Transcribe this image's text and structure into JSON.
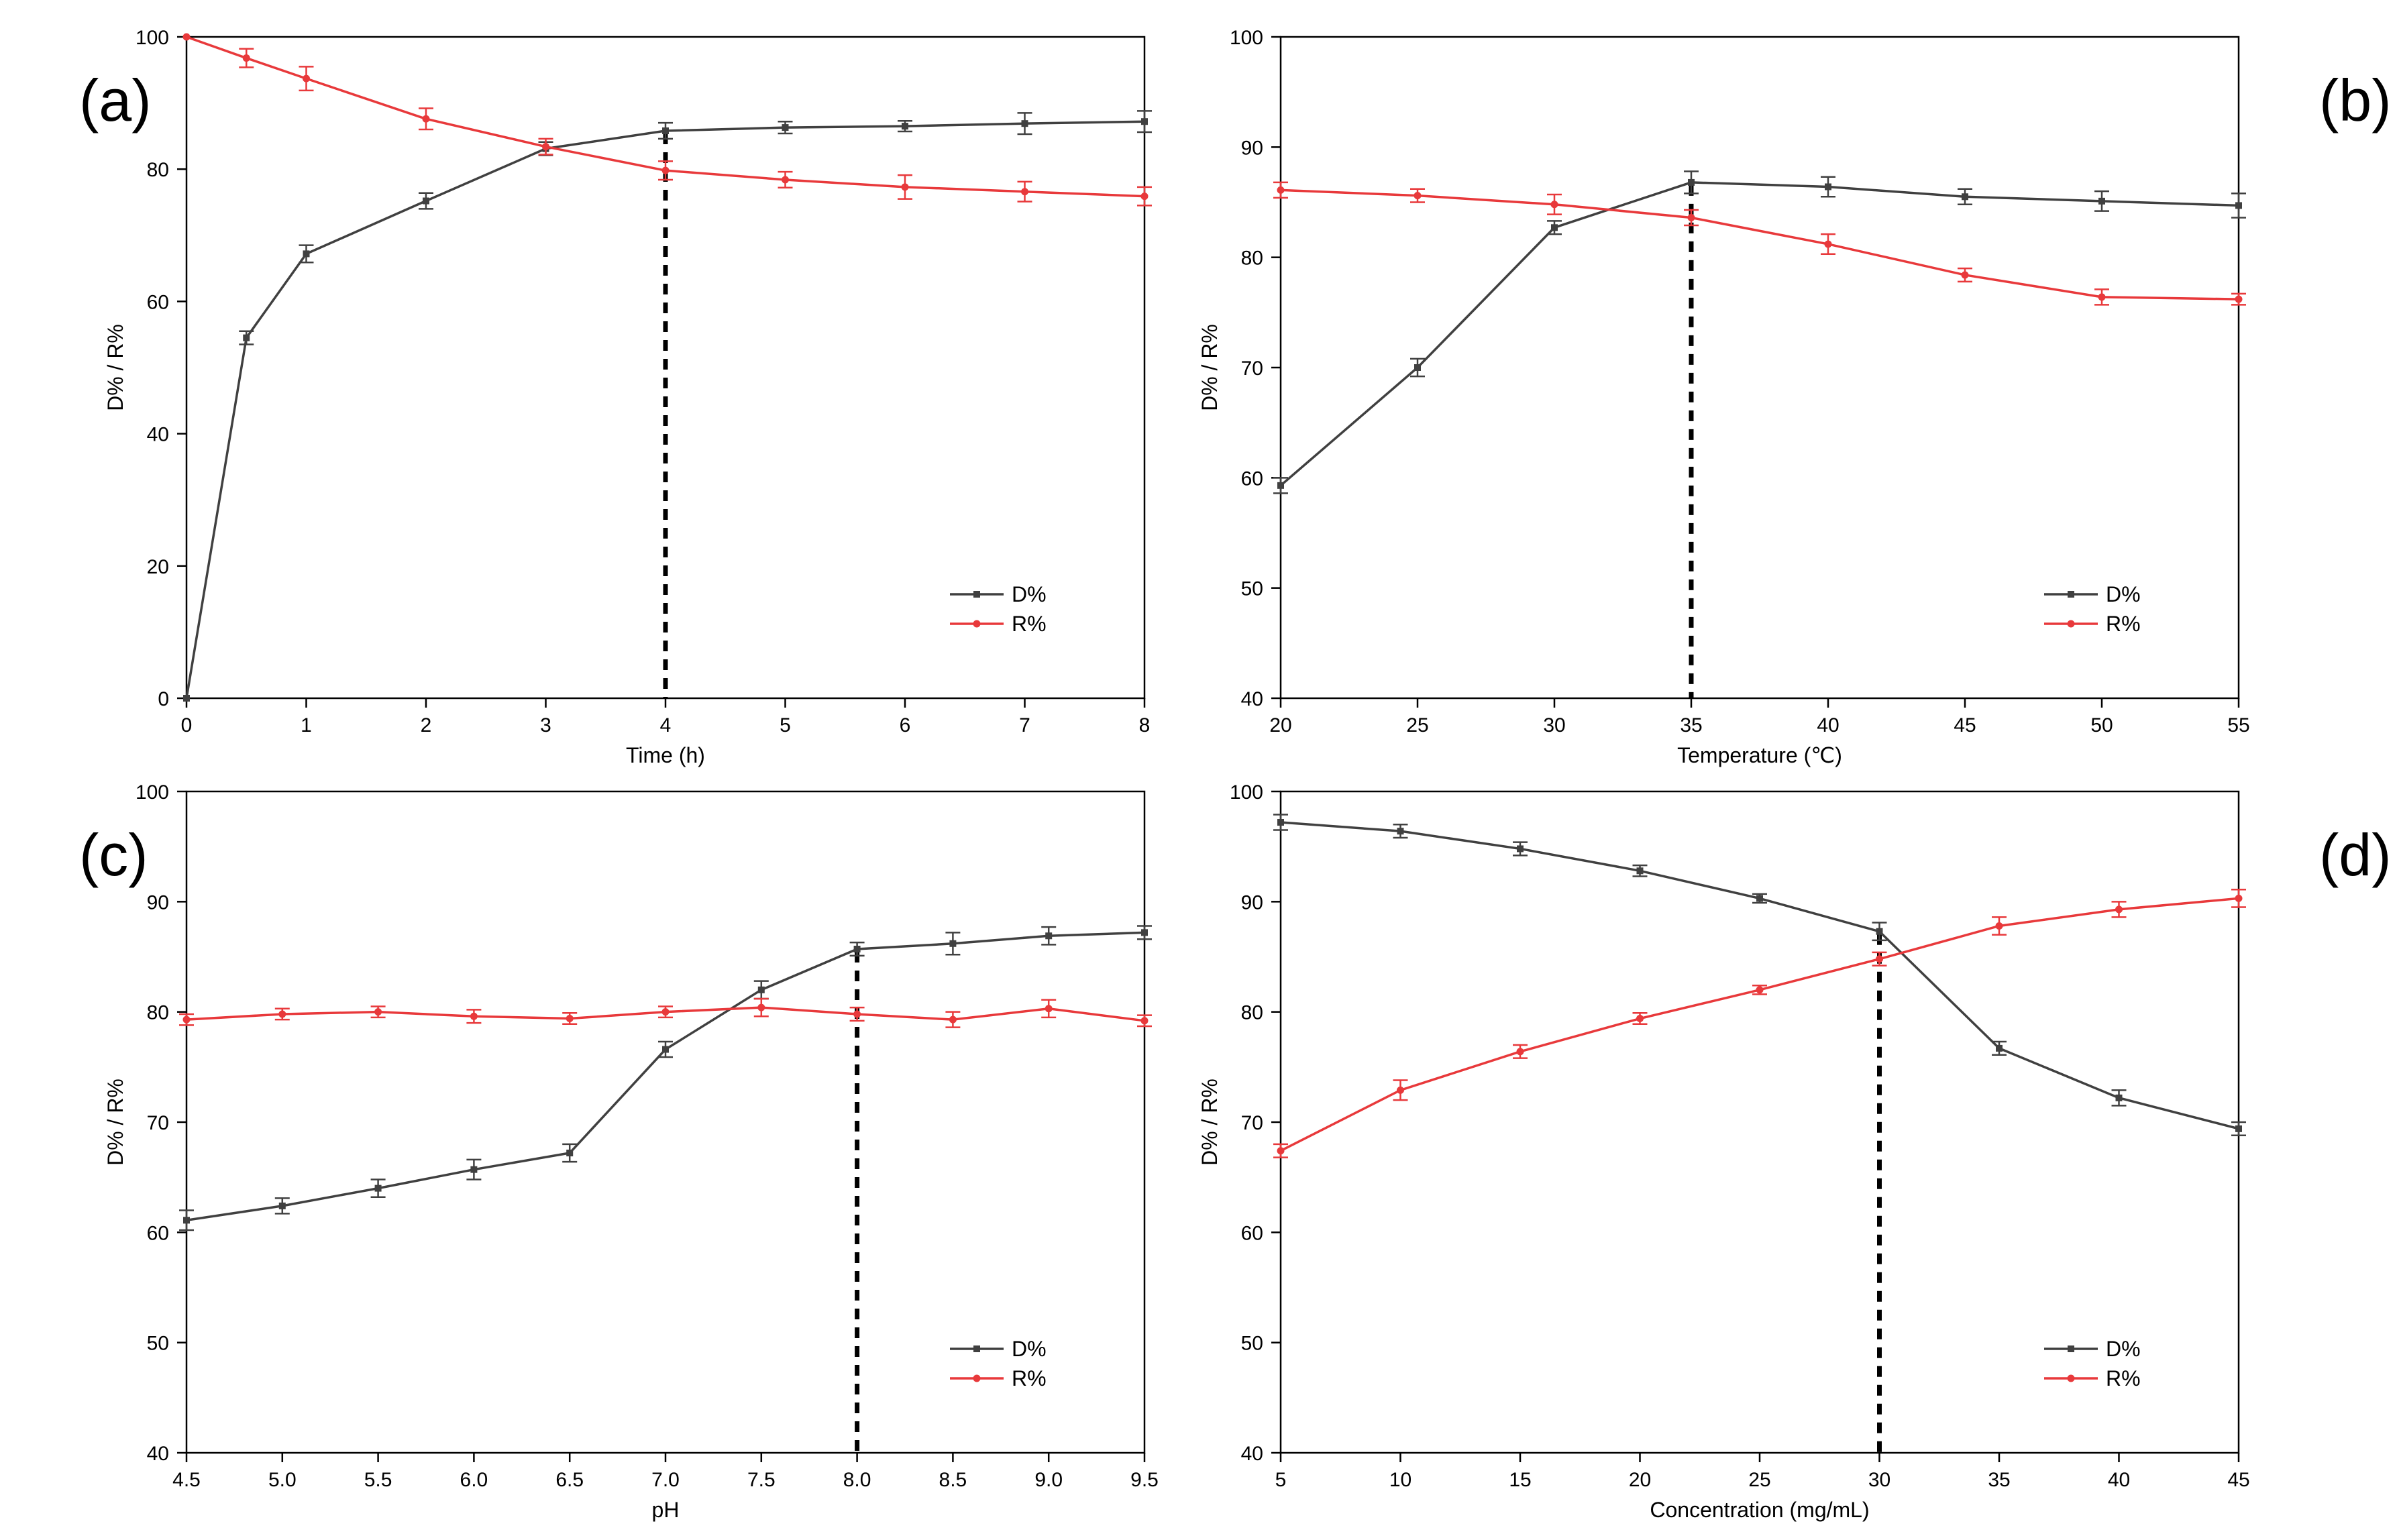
{
  "chart_data": [
    {
      "id": "a",
      "type": "line",
      "panel_label": "(a)",
      "panel_label_side": "left",
      "xlabel": "Time (h)",
      "ylabel": "D% / R%",
      "xlim": [
        0,
        8
      ],
      "ylim": [
        0,
        100
      ],
      "xticks": [
        0,
        1,
        2,
        3,
        4,
        5,
        6,
        7,
        8
      ],
      "yticks": [
        0,
        20,
        40,
        60,
        80,
        100
      ],
      "xtick_labels": [
        "0",
        "1",
        "2",
        "3",
        "4",
        "5",
        "6",
        "7",
        "8"
      ],
      "ytick_labels": [
        "0",
        "20",
        "40",
        "60",
        "80",
        "100"
      ],
      "vline_x": 4,
      "series": [
        {
          "name": "D%",
          "color": "#404040",
          "marker": "square",
          "x": [
            0,
            0.5,
            1,
            2,
            3,
            4,
            5,
            6,
            7,
            8
          ],
          "y": [
            0,
            54.5,
            67.2,
            75.2,
            83.1,
            85.8,
            86.3,
            86.5,
            86.9,
            87.2
          ],
          "err": [
            0,
            1.0,
            1.3,
            1.2,
            1.0,
            1.2,
            0.9,
            0.8,
            1.6,
            1.6
          ]
        },
        {
          "name": "R%",
          "color": "#e8393b",
          "marker": "circle",
          "x": [
            0,
            0.5,
            1,
            2,
            3,
            4,
            5,
            6,
            7,
            8
          ],
          "y": [
            100,
            96.8,
            93.7,
            87.6,
            83.4,
            79.8,
            78.4,
            77.3,
            76.6,
            75.9
          ],
          "err": [
            0,
            1.4,
            1.8,
            1.6,
            1.2,
            1.4,
            1.2,
            1.8,
            1.5,
            1.4
          ]
        }
      ]
    },
    {
      "id": "b",
      "type": "line",
      "panel_label": "(b)",
      "panel_label_side": "right",
      "xlabel": "Temperature (℃)",
      "ylabel": "D% / R%",
      "xlim": [
        20,
        55
      ],
      "ylim": [
        40,
        100
      ],
      "xticks": [
        20,
        25,
        30,
        35,
        40,
        45,
        50,
        55
      ],
      "yticks": [
        40,
        50,
        60,
        70,
        80,
        90,
        100
      ],
      "xtick_labels": [
        "20",
        "25",
        "30",
        "35",
        "40",
        "45",
        "50",
        "55"
      ],
      "ytick_labels": [
        "40",
        "50",
        "60",
        "70",
        "80",
        "90",
        "100"
      ],
      "vline_x": 35,
      "series": [
        {
          "name": "D%",
          "color": "#404040",
          "marker": "square",
          "x": [
            20,
            25,
            30,
            35,
            40,
            45,
            50,
            55
          ],
          "y": [
            59.3,
            70.0,
            82.7,
            86.8,
            86.4,
            85.5,
            85.1,
            84.7
          ],
          "err": [
            0.7,
            0.8,
            0.6,
            1.0,
            0.9,
            0.7,
            0.9,
            1.1
          ]
        },
        {
          "name": "R%",
          "color": "#e8393b",
          "marker": "circle",
          "x": [
            20,
            25,
            30,
            35,
            40,
            45,
            50,
            55
          ],
          "y": [
            86.1,
            85.6,
            84.8,
            83.6,
            81.2,
            78.4,
            76.4,
            76.2
          ],
          "err": [
            0.7,
            0.6,
            0.9,
            0.7,
            0.9,
            0.6,
            0.7,
            0.5
          ]
        }
      ]
    },
    {
      "id": "c",
      "type": "line",
      "panel_label": "(c)",
      "panel_label_side": "left",
      "xlabel": "pH",
      "ylabel": "D% / R%",
      "xlim": [
        4.5,
        9.5
      ],
      "ylim": [
        40,
        100
      ],
      "xticks": [
        4.5,
        5.0,
        5.5,
        6.0,
        6.5,
        7.0,
        7.5,
        8.0,
        8.5,
        9.0,
        9.5
      ],
      "yticks": [
        40,
        50,
        60,
        70,
        80,
        90,
        100
      ],
      "xtick_labels": [
        "4.5",
        "5.0",
        "5.5",
        "6.0",
        "6.5",
        "7.0",
        "7.5",
        "8.0",
        "8.5",
        "9.0",
        "9.5"
      ],
      "ytick_labels": [
        "40",
        "50",
        "60",
        "70",
        "80",
        "90",
        "100"
      ],
      "vline_x": 8.0,
      "series": [
        {
          "name": "D%",
          "color": "#404040",
          "marker": "square",
          "x": [
            4.5,
            5.0,
            5.5,
            6.0,
            6.5,
            7.0,
            7.5,
            8.0,
            8.5,
            9.0,
            9.5
          ],
          "y": [
            61.1,
            62.4,
            64.0,
            65.7,
            67.2,
            76.6,
            82.0,
            85.7,
            86.2,
            86.9,
            87.2
          ],
          "err": [
            0.9,
            0.7,
            0.8,
            0.9,
            0.8,
            0.7,
            0.8,
            0.6,
            1.0,
            0.8,
            0.6
          ]
        },
        {
          "name": "R%",
          "color": "#e8393b",
          "marker": "circle",
          "x": [
            4.5,
            5.0,
            5.5,
            6.0,
            6.5,
            7.0,
            7.5,
            8.0,
            8.5,
            9.0,
            9.5
          ],
          "y": [
            79.3,
            79.8,
            80.0,
            79.6,
            79.4,
            80.0,
            80.4,
            79.8,
            79.3,
            80.3,
            79.2
          ],
          "err": [
            0.5,
            0.5,
            0.5,
            0.6,
            0.5,
            0.5,
            0.8,
            0.6,
            0.7,
            0.8,
            0.5
          ]
        }
      ]
    },
    {
      "id": "d",
      "type": "line",
      "panel_label": "(d)",
      "panel_label_side": "right",
      "xlabel": "Concentration (mg/mL)",
      "ylabel": "D% / R%",
      "xlim": [
        5,
        45
      ],
      "ylim": [
        40,
        100
      ],
      "xticks": [
        5,
        10,
        15,
        20,
        25,
        30,
        35,
        40,
        45
      ],
      "yticks": [
        40,
        50,
        60,
        70,
        80,
        90,
        100
      ],
      "xtick_labels": [
        "5",
        "10",
        "15",
        "20",
        "25",
        "30",
        "35",
        "40",
        "45"
      ],
      "ytick_labels": [
        "40",
        "50",
        "60",
        "70",
        "80",
        "90",
        "100"
      ],
      "vline_x": 30,
      "series": [
        {
          "name": "D%",
          "color": "#404040",
          "marker": "square",
          "x": [
            5,
            10,
            15,
            20,
            25,
            30,
            35,
            40,
            45
          ],
          "y": [
            97.2,
            96.4,
            94.8,
            92.8,
            90.3,
            87.3,
            76.7,
            72.2,
            69.4
          ],
          "err": [
            0.7,
            0.6,
            0.6,
            0.5,
            0.4,
            0.8,
            0.6,
            0.7,
            0.6
          ]
        },
        {
          "name": "R%",
          "color": "#e8393b",
          "marker": "circle",
          "x": [
            5,
            10,
            15,
            20,
            25,
            30,
            35,
            40,
            45
          ],
          "y": [
            67.4,
            72.9,
            76.4,
            79.4,
            82.0,
            84.8,
            87.8,
            89.3,
            90.3
          ],
          "err": [
            0.6,
            0.9,
            0.6,
            0.5,
            0.4,
            0.6,
            0.8,
            0.7,
            0.8
          ]
        }
      ]
    }
  ]
}
